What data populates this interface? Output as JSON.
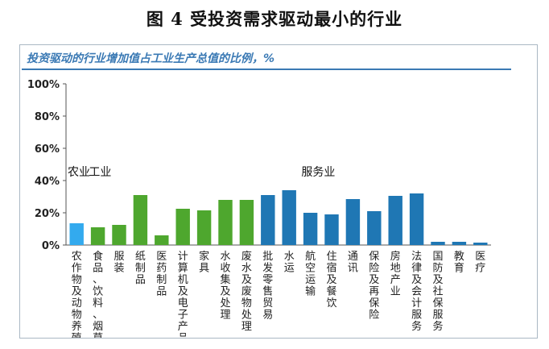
{
  "figure_title": "图 4  受投资需求驱动最小的行业",
  "chart_data": {
    "type": "bar",
    "title": "投资驱动的行业增加值占工业生产总值的比例，%",
    "ylim": [
      0,
      100
    ],
    "yticks": [
      "0%",
      "20%",
      "40%",
      "60%",
      "80%",
      "100%"
    ],
    "grid": false,
    "groups": [
      {
        "label": "农业",
        "color": "#33aaee",
        "start": 0
      },
      {
        "label": "工业",
        "color": "#4ea72e",
        "start": 1
      },
      {
        "label": "服务业",
        "color": "#1f77b4",
        "start": 11
      }
    ],
    "categories": [
      "农作物及动物养殖",
      "食品、饮料、烟草",
      "服装",
      "纸制品",
      "医药制品",
      "计算机及电子产品",
      "家具",
      "水收集及处理",
      "废水及废物处理",
      "批发零售贸易",
      "水运",
      "航空运输",
      "住宿及餐饮",
      "通讯",
      "保险及再保险",
      "房地产业",
      "法律及会计服务",
      "国防及社保服务",
      "教育",
      "医疗"
    ],
    "values": [
      13.5,
      11,
      12.5,
      31,
      6,
      22.5,
      21.5,
      28,
      28,
      31,
      34,
      20,
      19,
      28.5,
      21,
      30.5,
      32,
      2,
      2,
      1.5
    ],
    "colors": [
      "#33aaee",
      "#4ea72e",
      "#4ea72e",
      "#4ea72e",
      "#4ea72e",
      "#4ea72e",
      "#4ea72e",
      "#4ea72e",
      "#4ea72e",
      "#1f77b4",
      "#1f77b4",
      "#1f77b4",
      "#1f77b4",
      "#1f77b4",
      "#1f77b4",
      "#1f77b4",
      "#1f77b4",
      "#1f77b4",
      "#1f77b4",
      "#1f77b4"
    ]
  }
}
